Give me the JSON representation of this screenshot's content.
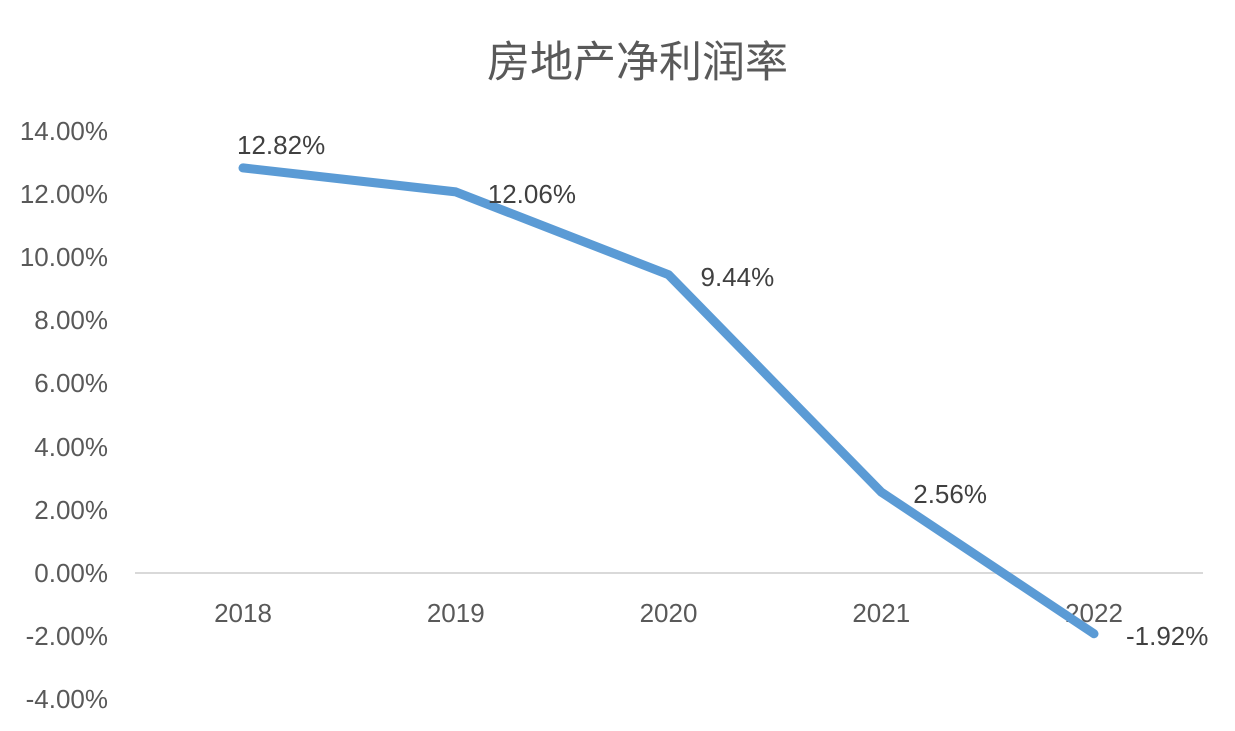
{
  "chart_data": {
    "type": "line",
    "title": "房地产净利润率",
    "categories": [
      "2018",
      "2019",
      "2020",
      "2021",
      "2022"
    ],
    "values": [
      12.82,
      12.06,
      9.44,
      2.56,
      -1.92
    ],
    "data_labels": [
      "12.82%",
      "12.06%",
      "9.44%",
      "2.56%",
      "-1.92%"
    ],
    "xlabel": "",
    "ylabel": "",
    "y_axis": {
      "tick_labels": [
        "14.00%",
        "12.00%",
        "10.00%",
        "8.00%",
        "6.00%",
        "4.00%",
        "2.00%",
        "0.00%",
        "-2.00%",
        "-4.00%"
      ],
      "tick_values": [
        14,
        12,
        10,
        8,
        6,
        4,
        2,
        0,
        -2,
        -4
      ],
      "min": -4,
      "max": 14,
      "step": 2
    },
    "grid": "zero-line-only",
    "legend": "none",
    "colors": {
      "line": "#5B9BD5",
      "zero_line": "#D9D9D9",
      "axis_text": "#595959",
      "data_label_text": "#404040",
      "title_text": "#595959",
      "background": "#FFFFFF"
    }
  }
}
